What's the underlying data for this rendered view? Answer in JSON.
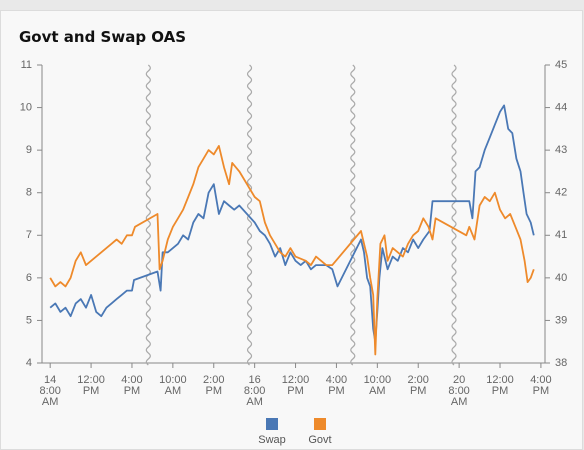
{
  "chart_data": {
    "type": "line",
    "title": "Govt and Swap OAS",
    "xlim": [
      -0.8,
      48.4
    ],
    "xticks": [
      {
        "value": 0,
        "label": "14\n8:00\nAM"
      },
      {
        "value": 4,
        "label": "12:00\nPM"
      },
      {
        "value": 8,
        "label": "4:00\nPM"
      },
      {
        "value": 12,
        "label": "10:00\nAM"
      },
      {
        "value": 16,
        "label": "2:00\nPM"
      },
      {
        "value": 20,
        "label": "16\n8:00\nAM"
      },
      {
        "value": 24,
        "label": "12:00\nPM"
      },
      {
        "value": 28,
        "label": "4:00\nPM"
      },
      {
        "value": 32,
        "label": "10:00\nAM"
      },
      {
        "value": 36,
        "label": "2:00\nPM"
      },
      {
        "value": 40,
        "label": "20\n8:00\nAM"
      },
      {
        "value": 44,
        "label": "12:00\nPM"
      },
      {
        "value": 48,
        "label": "4:00\nPM"
      }
    ],
    "breaks": [
      9.6,
      19.5,
      29.6,
      39.5
    ],
    "ylim": [
      4,
      11
    ],
    "yticks": [
      4,
      5,
      6,
      7,
      8,
      9,
      10,
      11
    ],
    "y2lim": [
      38,
      45
    ],
    "y2ticks": [
      38,
      39,
      40,
      41,
      42,
      43,
      44,
      45
    ],
    "series": [
      {
        "name": "Swap",
        "color": "#4a78b5",
        "x": [
          0,
          0.5,
          1,
          1.5,
          2,
          2.5,
          3,
          3.5,
          4,
          4.5,
          5,
          5.5,
          6,
          6.5,
          7,
          7.5,
          8,
          8.2,
          10.5,
          10.8,
          11,
          11.5,
          12,
          12.5,
          13,
          13.5,
          14,
          14.5,
          15,
          15.5,
          16,
          16.5,
          17,
          17.5,
          18,
          18.5,
          20,
          20.5,
          21,
          21.5,
          22,
          22.5,
          23,
          23.5,
          24,
          24.5,
          25,
          25.5,
          26,
          27,
          27.6,
          28.1,
          30.4,
          30.7,
          31,
          31.3,
          31.6,
          31.8,
          32,
          32.2,
          32.5,
          33,
          33.5,
          34,
          34.5,
          35,
          35.5,
          36,
          36.5,
          37.1,
          37.4,
          40.7,
          41,
          41.3,
          41.6,
          42,
          42.5,
          43,
          43.5,
          44,
          44.4,
          44.8,
          45.2,
          45.6,
          46,
          46.3,
          46.6,
          47,
          47.3
        ],
        "values": [
          5.3,
          5.4,
          5.2,
          5.3,
          5.1,
          5.4,
          5.5,
          5.3,
          5.6,
          5.2,
          5.1,
          5.3,
          5.4,
          5.5,
          5.6,
          5.7,
          5.7,
          5.95,
          6.15,
          5.7,
          6.6,
          6.6,
          6.7,
          6.8,
          7.0,
          6.9,
          7.3,
          7.5,
          7.4,
          8.0,
          8.2,
          7.5,
          7.8,
          7.7,
          7.6,
          7.7,
          7.3,
          7.1,
          7.0,
          6.8,
          6.5,
          6.7,
          6.3,
          6.6,
          6.4,
          6.3,
          6.4,
          6.2,
          6.3,
          6.3,
          6.2,
          5.8,
          6.9,
          6.6,
          6.0,
          5.8,
          4.8,
          4.5,
          5.2,
          6.0,
          6.7,
          6.2,
          6.5,
          6.4,
          6.7,
          6.6,
          6.9,
          6.7,
          6.9,
          7.1,
          7.8,
          7.8,
          7.8,
          7.4,
          8.5,
          8.6,
          9.0,
          9.3,
          9.6,
          9.9,
          10.05,
          9.5,
          9.4,
          8.8,
          8.5,
          8.0,
          7.5,
          7.3,
          7.0
        ]
      },
      {
        "name": "Govt",
        "color": "#ee8a2b",
        "axis": "y2",
        "x": [
          0,
          0.5,
          1,
          1.5,
          2,
          2.5,
          3,
          3.5,
          4,
          4.5,
          5,
          5.5,
          6,
          6.5,
          7,
          7.5,
          8,
          8.3,
          10.5,
          10.7,
          11,
          11.5,
          12,
          12.5,
          13,
          13.5,
          14,
          14.5,
          15,
          15.5,
          16,
          16.5,
          17,
          17.5,
          17.8,
          18.5,
          20,
          20.5,
          21,
          21.5,
          22,
          22.5,
          23,
          23.5,
          24,
          25,
          25.5,
          26,
          27,
          27.6,
          30.4,
          30.6,
          31,
          31.3,
          31.6,
          31.8,
          32,
          32.3,
          32.7,
          33,
          33.5,
          34,
          34.5,
          35,
          35.5,
          36,
          36.5,
          37,
          37.4,
          37.7,
          40.7,
          41,
          41.5,
          42,
          42.5,
          43,
          43.5,
          44,
          44.5,
          45,
          45.5,
          46,
          46.4,
          46.7,
          47,
          47.3
        ],
        "values": [
          40.0,
          39.8,
          39.9,
          39.8,
          40.0,
          40.4,
          40.6,
          40.3,
          40.4,
          40.5,
          40.6,
          40.7,
          40.8,
          40.9,
          40.8,
          41.0,
          41.0,
          41.2,
          41.5,
          40.2,
          40.4,
          40.9,
          41.2,
          41.4,
          41.6,
          41.9,
          42.2,
          42.6,
          42.8,
          43.0,
          42.9,
          43.1,
          42.6,
          42.2,
          42.7,
          42.5,
          41.9,
          41.8,
          41.3,
          41.0,
          40.8,
          40.6,
          40.5,
          40.7,
          40.5,
          40.4,
          40.3,
          40.5,
          40.3,
          40.3,
          41.1,
          40.9,
          40.5,
          40.0,
          39.6,
          38.2,
          39.5,
          40.8,
          41.0,
          40.4,
          40.7,
          40.6,
          40.5,
          40.8,
          41.0,
          41.1,
          41.4,
          41.2,
          40.9,
          41.4,
          41.0,
          41.2,
          40.9,
          41.7,
          41.9,
          41.8,
          42.0,
          41.6,
          41.4,
          41.5,
          41.2,
          40.9,
          40.4,
          39.9,
          40.0,
          40.2
        ]
      }
    ]
  }
}
